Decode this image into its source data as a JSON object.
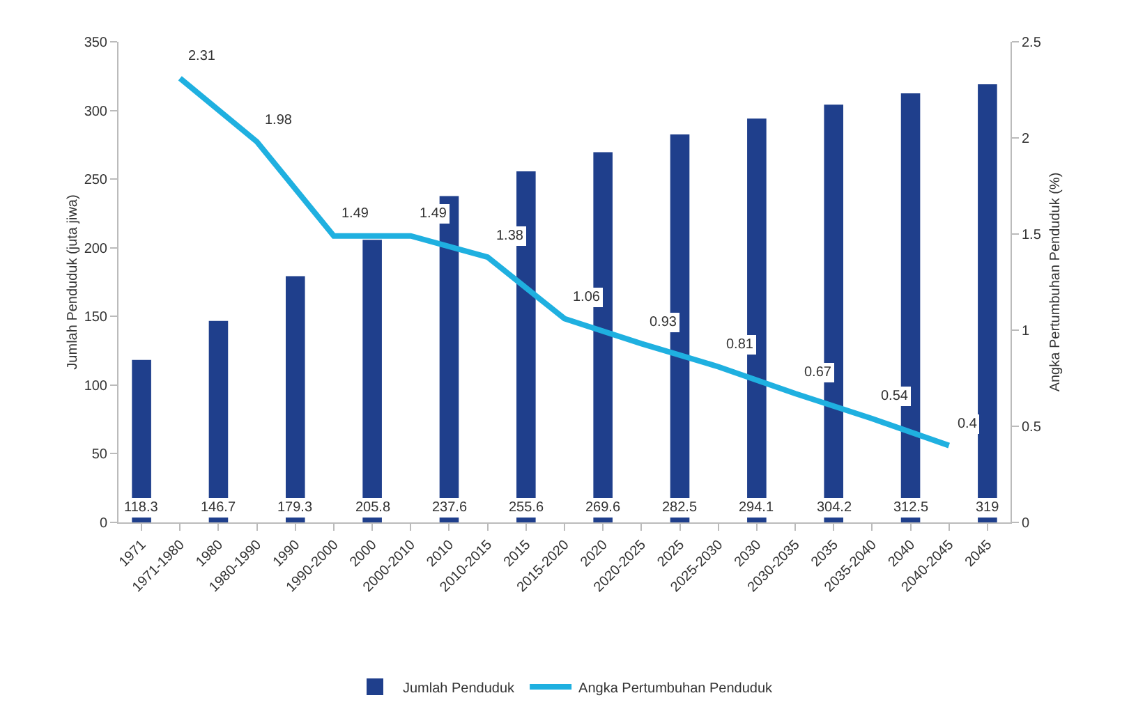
{
  "chart_data": {
    "type": "bar",
    "categories": [
      "1971",
      "1971-1980",
      "1980",
      "1980-1990",
      "1990",
      "1990-2000",
      "2000",
      "2000-2010",
      "2010",
      "2010-2015",
      "2015",
      "2015-2020",
      "2020",
      "2020-2025",
      "2025",
      "2025-2030",
      "2030",
      "2030-2035",
      "2035",
      "2035-2040",
      "2040",
      "2040-2045",
      "2045"
    ],
    "ylabel": "Jumlah Penduduk (juta jiwa)",
    "y2label": "Angka Pertumbuhan Penduduk (%)",
    "series": [
      {
        "name": "Jumlah Penduduk",
        "color": "#1f3f8c",
        "values": [
          118.3,
          null,
          146.7,
          null,
          179.3,
          null,
          205.8,
          null,
          237.6,
          null,
          255.6,
          null,
          269.6,
          null,
          282.5,
          null,
          294.1,
          null,
          304.2,
          null,
          312.5,
          null,
          319
        ]
      },
      {
        "name": "Angka Pertumbuhan Penduduk",
        "type": "line",
        "axis": "y2",
        "color": "#1fb0e0",
        "values": [
          null,
          2.31,
          null,
          1.98,
          null,
          1.49,
          null,
          1.49,
          null,
          1.38,
          null,
          1.06,
          null,
          0.93,
          null,
          0.81,
          null,
          0.67,
          null,
          0.54,
          null,
          0.4,
          null
        ]
      }
    ],
    "ylim": [
      0,
      350
    ],
    "yticks": [
      0,
      50,
      100,
      150,
      200,
      250,
      300,
      350
    ],
    "y2lim": [
      0,
      2.5
    ],
    "y2ticks": [
      0,
      0.5,
      1,
      1.5,
      2,
      2.5
    ],
    "data_labels": true,
    "legend": "bottom",
    "grid": false,
    "marker": "none"
  }
}
